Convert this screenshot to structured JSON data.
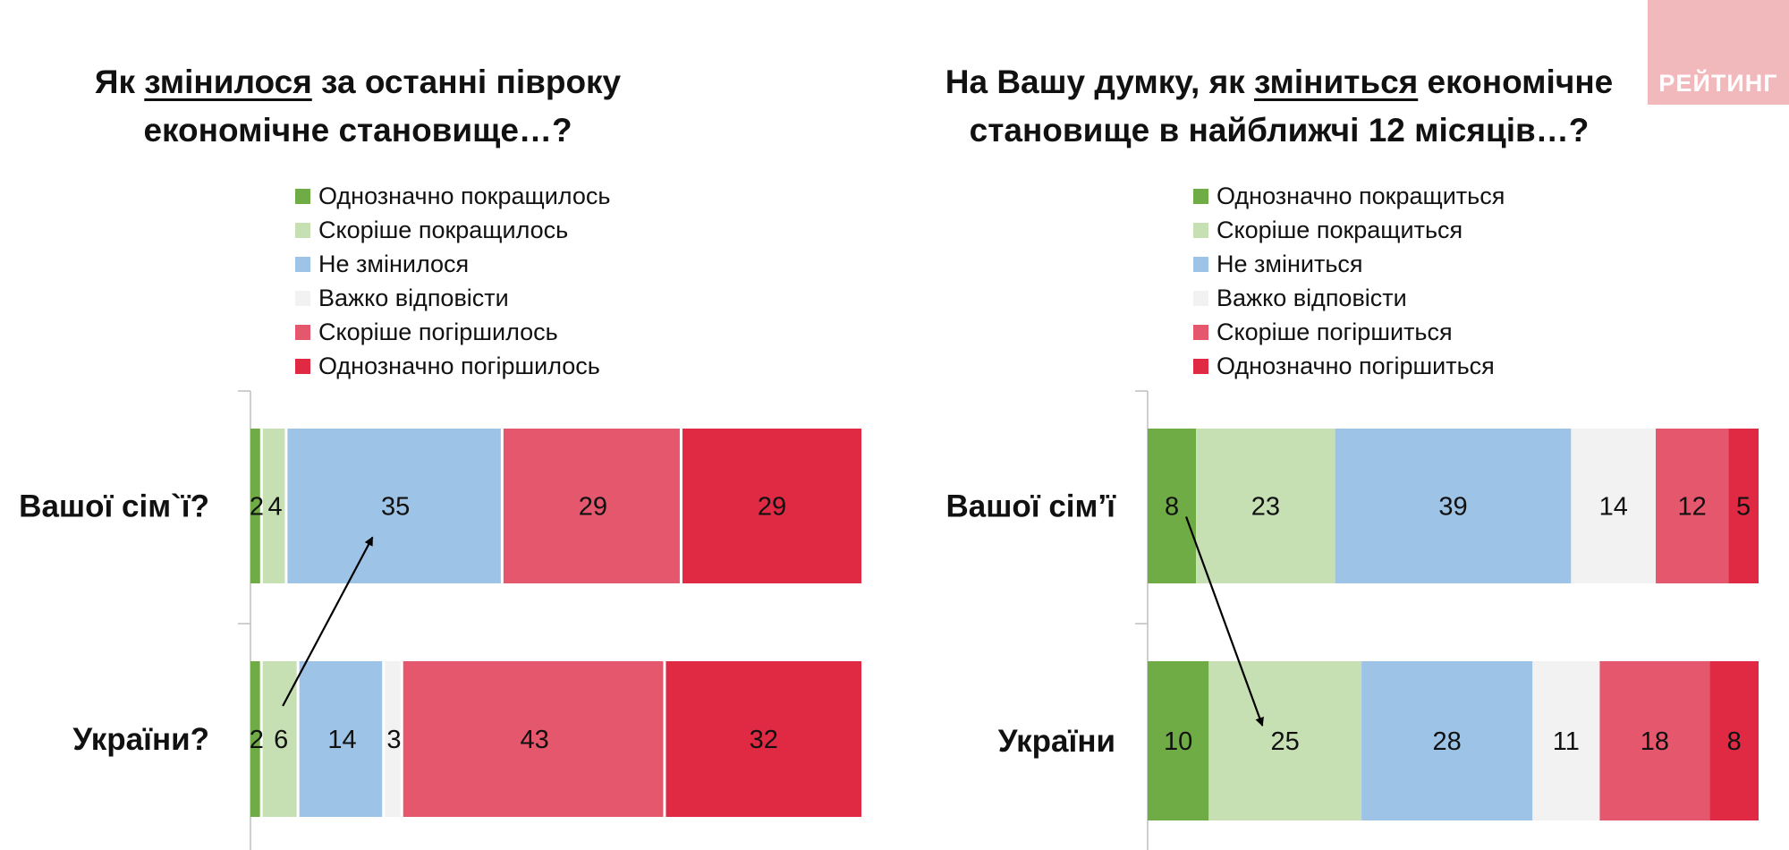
{
  "logo_text": "РЕЙТИНГ",
  "chart_data": [
    {
      "type": "bar",
      "orientation": "horizontal",
      "stacked": true,
      "title_parts": [
        "Як ",
        "змінилося",
        " за останні півроку економічне становище…?"
      ],
      "title": "Як змінилося за останні півроку економічне становище…?",
      "categories": [
        "Вашої сім`ї?",
        "України?"
      ],
      "series": [
        {
          "name": "Однозначно покращилось",
          "color": "#6fac46",
          "values": [
            2,
            2
          ]
        },
        {
          "name": "Скоріше покращилось",
          "color": "#c6e0b4",
          "values": [
            4,
            6
          ]
        },
        {
          "name": "Не змінилося",
          "color": "#9dc3e6",
          "values": [
            35,
            14
          ]
        },
        {
          "name": "Важко відповісти",
          "color": "#f2f2f2",
          "values": [
            0,
            3
          ]
        },
        {
          "name": "Скоріше погіршилось",
          "color": "#e5576c",
          "values": [
            29,
            43
          ]
        },
        {
          "name": "Однозначно погіршилось",
          "color": "#e02a44",
          "values": [
            29,
            32
          ]
        }
      ],
      "data_labels": [
        [
          "2",
          "4",
          "35",
          "",
          "29",
          "29"
        ],
        [
          "2",
          "6",
          "14",
          "3",
          "43",
          "32"
        ]
      ],
      "annotation": "arrow from Скоріше покращилось (України) to Не змінилося (Вашої сім`ї)"
    },
    {
      "type": "bar",
      "orientation": "horizontal",
      "stacked": true,
      "title_parts": [
        "На Вашу думку, як ",
        "зміниться",
        " економічне становище в найближчі 12 місяців…?"
      ],
      "title": "На Вашу думку, як зміниться економічне становище в найближчі 12 місяців…?",
      "categories": [
        "Вашої сім’ї",
        "України"
      ],
      "series": [
        {
          "name": "Однозначно покращиться",
          "color": "#6fac46",
          "values": [
            8,
            10
          ]
        },
        {
          "name": "Скоріше покращиться",
          "color": "#c6e0b4",
          "values": [
            23,
            25
          ]
        },
        {
          "name": "Не зміниться",
          "color": "#9dc3e6",
          "values": [
            39,
            28
          ]
        },
        {
          "name": "Важко відповісти",
          "color": "#f2f2f2",
          "values": [
            14,
            11
          ]
        },
        {
          "name": "Скоріше погіршиться",
          "color": "#e5576c",
          "values": [
            12,
            18
          ]
        },
        {
          "name": "Однозначно погіршиться",
          "color": "#e02a44",
          "values": [
            5,
            8
          ]
        }
      ],
      "data_labels": [
        [
          "8",
          "23",
          "39",
          "14",
          "12",
          "5"
        ],
        [
          "10",
          "25",
          "28",
          "11",
          "18",
          "8"
        ]
      ],
      "annotation": "arrow from Однозначно покращиться (Вашої сім’ї) to Скоріше покращиться (України)"
    }
  ]
}
